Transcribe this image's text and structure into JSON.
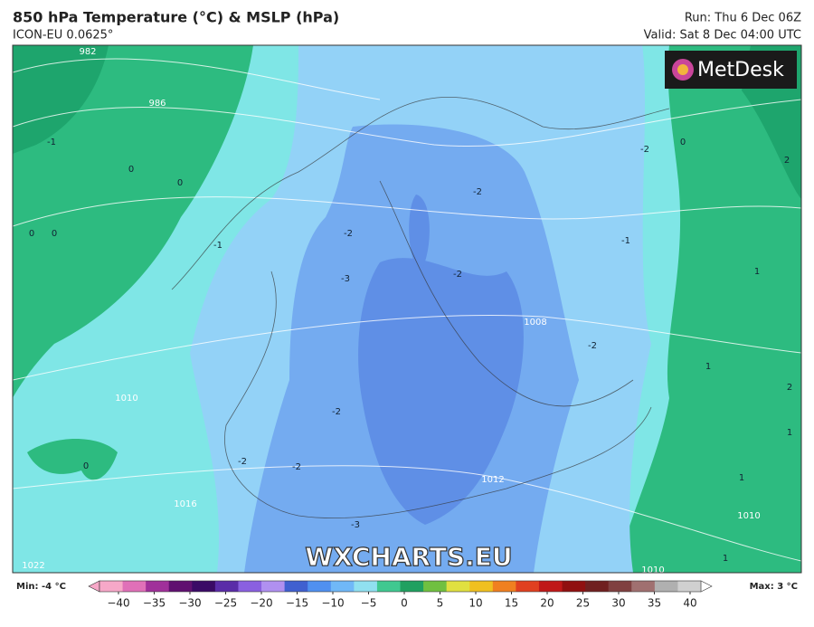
{
  "header": {
    "title": "850 hPa Temperature (°C) & MSLP (hPa)",
    "subtitle": "ICON-EU 0.0625°",
    "run": "Run: Thu 6 Dec 06Z",
    "valid": "Valid: Sat 8 Dec 04:00 UTC"
  },
  "logo": "MetDesk",
  "watermark": "WXCHARTS.EU",
  "contour_labels": [
    "982",
    "986",
    "-1",
    "0",
    "0",
    "0",
    "0",
    "-1",
    "-2",
    "-3",
    "-2",
    "-2",
    "-2",
    "-1",
    "0",
    "2",
    "1",
    "-2",
    "1",
    "2",
    "1",
    "-2",
    "-2",
    "-2",
    "0",
    "-3",
    "1",
    "1",
    "1016",
    "1022",
    "1010",
    "1010",
    "1008",
    "1012",
    "1010"
  ],
  "colorbar": {
    "min_label": "Min: -4 °C",
    "max_label": "Max: 3 °C",
    "ticks": [
      "−40",
      "−35",
      "−30",
      "−25",
      "−20",
      "−15",
      "−10",
      "−5",
      "0",
      "5",
      "10",
      "15",
      "20",
      "25",
      "30",
      "35",
      "40"
    ]
  }
}
